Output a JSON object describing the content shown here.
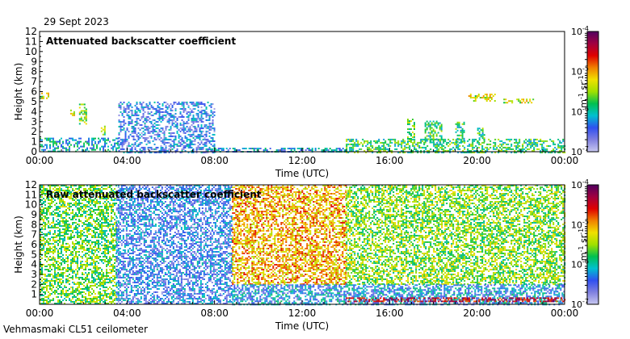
{
  "header": {
    "date": "29 Sept 2023"
  },
  "footer": {
    "instrument": "Vehmasmaki CL51 ceilometer"
  },
  "colors": {
    "background": "#ffffff",
    "colormap": [
      "#c8c8f0",
      "#8080e0",
      "#3050f0",
      "#00c0d0",
      "#00c050",
      "#a0e000",
      "#f0e000",
      "#f08000",
      "#e00000",
      "#a00040",
      "#500060"
    ]
  },
  "chart_data": [
    {
      "type": "heatmap",
      "title": "Attenuated backscatter coefficient",
      "xlabel": "Time (UTC)",
      "ylabel": "Height (km)",
      "x_ticks": [
        "00:00",
        "04:00",
        "08:00",
        "12:00",
        "16:00",
        "20:00",
        "00:00"
      ],
      "y_ticks": [
        "0",
        "1",
        "2",
        "3",
        "4",
        "5",
        "6",
        "7",
        "8",
        "9",
        "10",
        "11",
        "12"
      ],
      "ylim": [
        0,
        12
      ],
      "colorbar": {
        "ticks": [
          {
            "base": "10",
            "exp": "-7",
            "value": 1e-07
          },
          {
            "base": "10",
            "exp": "-6",
            "value": 1e-06
          },
          {
            "base": "10",
            "exp": "-5",
            "value": 1e-05
          },
          {
            "base": "10",
            "exp": "-4",
            "value": 0.0001
          }
        ],
        "unit_parts": [
          {
            "t": "m"
          },
          {
            "t": "-1",
            "sup": true
          },
          {
            "t": " sr"
          },
          {
            "t": "-1",
            "sup": true
          }
        ],
        "scale": "log"
      },
      "features": [
        {
          "t0": 0.0,
          "t1": 3.6,
          "h0": 0.0,
          "h1": 1.4,
          "level": 0.3
        },
        {
          "t0": 3.6,
          "t1": 8.0,
          "h0": 0.0,
          "h1": 5.0,
          "level": 0.2
        },
        {
          "t0": 0.0,
          "t1": 0.4,
          "h0": 5.3,
          "h1": 5.9,
          "level": 0.55
        },
        {
          "t0": 1.4,
          "t1": 1.6,
          "h0": 3.6,
          "h1": 4.2,
          "level": 0.6
        },
        {
          "t0": 1.8,
          "t1": 2.1,
          "h0": 2.8,
          "h1": 4.8,
          "level": 0.5
        },
        {
          "t0": 2.8,
          "t1": 3.0,
          "h0": 1.6,
          "h1": 2.6,
          "level": 0.45
        },
        {
          "t0": 8.0,
          "t1": 14.0,
          "h0": 0.0,
          "h1": 0.4,
          "level": 0.25
        },
        {
          "t0": 14.0,
          "t1": 24.0,
          "h0": 0.0,
          "h1": 1.3,
          "level": 0.4
        },
        {
          "t0": 16.8,
          "t1": 17.1,
          "h0": 0.8,
          "h1": 3.3,
          "level": 0.45
        },
        {
          "t0": 17.6,
          "t1": 18.4,
          "h0": 1.0,
          "h1": 3.1,
          "level": 0.4
        },
        {
          "t0": 19.0,
          "t1": 19.4,
          "h0": 1.0,
          "h1": 3.0,
          "level": 0.4
        },
        {
          "t0": 20.0,
          "t1": 20.3,
          "h0": 1.0,
          "h1": 2.4,
          "level": 0.4
        },
        {
          "t0": 19.6,
          "t1": 20.8,
          "h0": 5.0,
          "h1": 5.8,
          "level": 0.55
        },
        {
          "t0": 21.2,
          "t1": 22.6,
          "h0": 4.9,
          "h1": 5.3,
          "level": 0.55
        }
      ]
    },
    {
      "type": "heatmap",
      "title": "Raw attenuated backscatter coefficient",
      "xlabel": "Time (UTC)",
      "ylabel": "Height (km)",
      "x_ticks": [
        "00:00",
        "04:00",
        "08:00",
        "12:00",
        "16:00",
        "20:00",
        "00:00"
      ],
      "y_ticks": [
        "1",
        "2",
        "3",
        "4",
        "5",
        "6",
        "7",
        "8",
        "9",
        "10",
        "11",
        "12"
      ],
      "ylim": [
        0,
        12
      ],
      "colorbar": {
        "ticks": [
          {
            "base": "10",
            "exp": "-7",
            "value": 1e-07
          },
          {
            "base": "10",
            "exp": "-6",
            "value": 1e-06
          },
          {
            "base": "10",
            "exp": "-5",
            "value": 1e-05
          },
          {
            "base": "10",
            "exp": "-4",
            "value": 0.0001
          }
        ],
        "unit_parts": [
          {
            "t": "m"
          },
          {
            "t": "-1",
            "sup": true
          },
          {
            "t": " sr"
          },
          {
            "t": "-1",
            "sup": true
          }
        ],
        "scale": "log"
      },
      "features": [
        {
          "t0": 0.0,
          "t1": 3.5,
          "h0": 0.0,
          "h1": 12.0,
          "level": 0.45
        },
        {
          "t0": 3.5,
          "t1": 8.8,
          "h0": 0.0,
          "h1": 12.0,
          "level": 0.2
        },
        {
          "t0": 8.8,
          "t1": 14.0,
          "h0": 2.0,
          "h1": 12.0,
          "level": 0.65
        },
        {
          "t0": 14.0,
          "t1": 24.0,
          "h0": 2.0,
          "h1": 12.0,
          "level": 0.48
        },
        {
          "t0": 8.8,
          "t1": 24.0,
          "h0": 0.0,
          "h1": 2.0,
          "level": 0.25
        },
        {
          "t0": 14.0,
          "t1": 24.0,
          "h0": 0.3,
          "h1": 0.7,
          "level": 0.85
        }
      ]
    }
  ]
}
